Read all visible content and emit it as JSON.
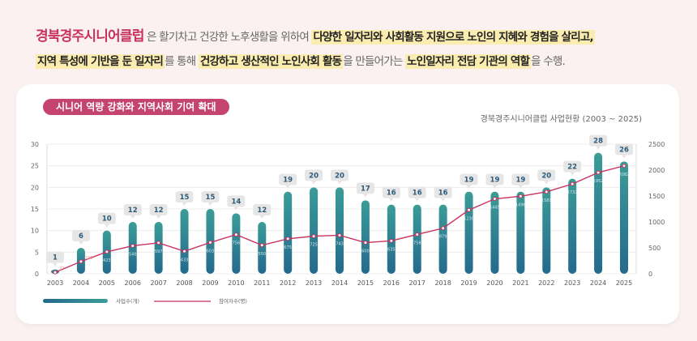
{
  "intro": {
    "brand": "경북경주시니어클럽",
    "t1": " 은 활기차고 건강한 노후생활을 위하여 ",
    "h1": "다양한 일자리와 사회활동 지원으로 노인의 지혜와 경험을 살리고,",
    "h2": "지역 특성에 기반을 둔 일자리",
    "t2": "를 통해 ",
    "h3": "건강하고 생산적인 노인사회 활동",
    "t3": "을 만들어가는 ",
    "h4": "노인일자리 전담 기관의 역할",
    "t4": "을 수행."
  },
  "section_pill": "시니어 역량 강화와 지역사회 기여 확대",
  "chart_data": {
    "type": "bar",
    "title": "경북경주시니어클럽 사업현황 (2003 ~ 2025)",
    "categories": [
      "2003",
      "2004",
      "2005",
      "2006",
      "2007",
      "2008",
      "2009",
      "2010",
      "2011",
      "2012",
      "2013",
      "2014",
      "2015",
      "2016",
      "2017",
      "2018",
      "2019",
      "2020",
      "2021",
      "2022",
      "2023",
      "2024",
      "2025"
    ],
    "series": [
      {
        "name": "사업수(개)",
        "type": "bar",
        "axis": "left",
        "values": [
          1,
          6,
          10,
          12,
          12,
          15,
          15,
          14,
          12,
          19,
          20,
          20,
          17,
          16,
          16,
          16,
          19,
          19,
          19,
          20,
          22,
          28,
          26
        ]
      },
      {
        "name": "참여자수(명)",
        "type": "line",
        "axis": "right",
        "values": [
          27,
          236,
          423,
          540,
          597,
          433,
          603,
          756,
          550,
          675,
          725,
          743,
          600,
          635,
          758,
          879,
          1230,
          1445,
          1496,
          1581,
          1732,
          1952,
          2082
        ]
      }
    ],
    "y_left": {
      "range": [
        0,
        30
      ],
      "ticks": [
        "0",
        "5",
        "10",
        "15",
        "20",
        "25",
        "30"
      ]
    },
    "y_right": {
      "range": [
        0,
        2500
      ],
      "ticks": [
        "0",
        "500",
        "1000",
        "1500",
        "2000",
        "2500"
      ]
    },
    "grid": true,
    "legend": "bottom-left",
    "colors": {
      "bar_top": "#3a9c98",
      "bar_bottom": "#246a8c",
      "line": "#c8325e",
      "label": "#2a5a7a"
    }
  }
}
